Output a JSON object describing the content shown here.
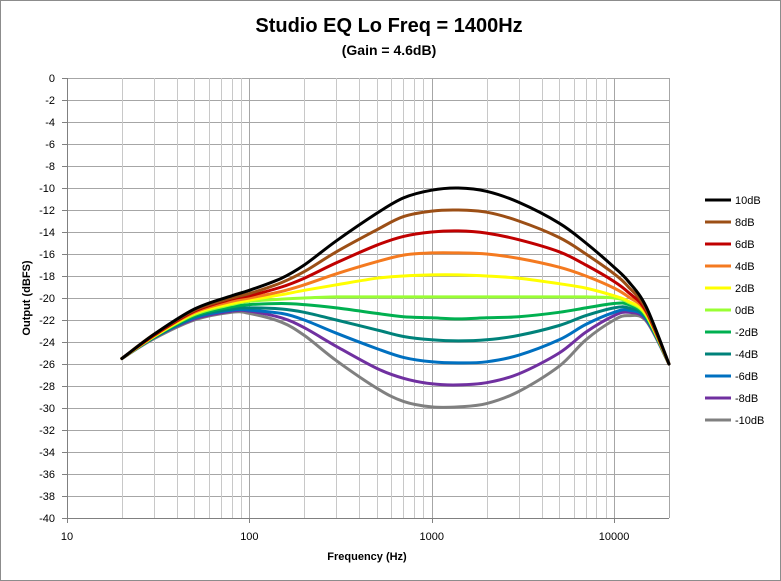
{
  "chart_data": {
    "type": "line",
    "title": "Studio EQ Lo Freq = 1400Hz",
    "subtitle": "(Gain = 4.6dB)",
    "xlabel": "Frequency (Hz)",
    "ylabel": "Output (dBFS)",
    "xscale": "log",
    "xlim": [
      10,
      20000
    ],
    "ylim": [
      -40,
      0
    ],
    "xticks": [
      10,
      100,
      1000,
      10000
    ],
    "yticks": [
      0,
      -2,
      -4,
      -6,
      -8,
      -10,
      -12,
      -14,
      -16,
      -18,
      -20,
      -22,
      -24,
      -26,
      -28,
      -30,
      -32,
      -34,
      -36,
      -38,
      -40
    ],
    "grid": true,
    "legend": "right",
    "x": [
      20,
      30,
      50,
      80,
      100,
      150,
      200,
      300,
      500,
      700,
      1000,
      1400,
      2000,
      3000,
      5000,
      7000,
      10000,
      12000,
      15000,
      20000
    ],
    "series": [
      {
        "name": "10dB",
        "color": "#000000",
        "values": [
          -25.5,
          -23.3,
          -21.0,
          -19.8,
          -19.3,
          -18.2,
          -17.0,
          -14.8,
          -12.3,
          -10.9,
          -10.2,
          -10.0,
          -10.3,
          -11.3,
          -13.2,
          -15.0,
          -17.2,
          -18.5,
          -20.8,
          -26.0
        ]
      },
      {
        "name": "8dB",
        "color": "#9c4f16",
        "values": [
          -25.5,
          -23.3,
          -21.1,
          -20.0,
          -19.6,
          -18.6,
          -17.6,
          -15.8,
          -13.8,
          -12.6,
          -12.1,
          -12.0,
          -12.2,
          -13.0,
          -14.5,
          -16.0,
          -17.8,
          -19.0,
          -21.0,
          -26.0
        ]
      },
      {
        "name": "6dB",
        "color": "#c00000",
        "values": [
          -25.5,
          -23.4,
          -21.2,
          -20.1,
          -19.8,
          -19.0,
          -18.2,
          -16.8,
          -15.2,
          -14.4,
          -14.0,
          -13.9,
          -14.1,
          -14.7,
          -15.8,
          -17.0,
          -18.5,
          -19.5,
          -21.2,
          -26.0
        ]
      },
      {
        "name": "4dB",
        "color": "#f47a20",
        "values": [
          -25.5,
          -23.4,
          -21.3,
          -20.3,
          -20.0,
          -19.4,
          -18.8,
          -17.8,
          -16.7,
          -16.1,
          -15.9,
          -15.9,
          -16.0,
          -16.4,
          -17.2,
          -18.0,
          -19.1,
          -19.9,
          -21.3,
          -26.0
        ]
      },
      {
        "name": "2dB",
        "color": "#ffff00",
        "values": [
          -25.5,
          -23.5,
          -21.4,
          -20.5,
          -20.2,
          -19.7,
          -19.3,
          -18.8,
          -18.2,
          -18.0,
          -17.9,
          -17.9,
          -18.0,
          -18.2,
          -18.7,
          -19.1,
          -19.8,
          -20.3,
          -21.5,
          -26.0
        ]
      },
      {
        "name": "0dB",
        "color": "#99ff33",
        "values": [
          -25.5,
          -23.5,
          -21.5,
          -20.6,
          -20.3,
          -20.1,
          -20.0,
          -19.9,
          -19.9,
          -19.9,
          -19.9,
          -19.9,
          -19.9,
          -19.9,
          -19.9,
          -19.9,
          -20.0,
          -20.4,
          -21.6,
          -26.0
        ]
      },
      {
        "name": "-2dB",
        "color": "#00b050",
        "values": [
          -25.5,
          -23.5,
          -21.6,
          -20.8,
          -20.6,
          -20.5,
          -20.6,
          -20.9,
          -21.4,
          -21.7,
          -21.8,
          -21.9,
          -21.8,
          -21.7,
          -21.3,
          -20.9,
          -20.5,
          -20.6,
          -21.7,
          -26.0
        ]
      },
      {
        "name": "-4dB",
        "color": "#00827a",
        "values": [
          -25.5,
          -23.6,
          -21.7,
          -21.0,
          -20.9,
          -21.0,
          -21.3,
          -22.0,
          -22.9,
          -23.5,
          -23.8,
          -23.9,
          -23.8,
          -23.4,
          -22.5,
          -21.6,
          -20.9,
          -20.9,
          -21.8,
          -26.0
        ]
      },
      {
        "name": "-6dB",
        "color": "#0070c0",
        "values": [
          -25.5,
          -23.6,
          -21.8,
          -21.1,
          -21.1,
          -21.4,
          -22.0,
          -23.2,
          -24.6,
          -25.4,
          -25.8,
          -25.9,
          -25.8,
          -25.2,
          -23.8,
          -22.4,
          -21.3,
          -21.1,
          -21.9,
          -26.0
        ]
      },
      {
        "name": "-8dB",
        "color": "#7030a0",
        "values": [
          -25.5,
          -23.6,
          -21.9,
          -21.2,
          -21.2,
          -21.8,
          -22.7,
          -24.4,
          -26.4,
          -27.3,
          -27.8,
          -27.9,
          -27.7,
          -26.9,
          -25.0,
          -23.1,
          -21.6,
          -21.3,
          -22.0,
          -26.0
        ]
      },
      {
        "name": "-10dB",
        "color": "#808080",
        "values": [
          -25.5,
          -23.7,
          -22.0,
          -21.3,
          -21.4,
          -22.2,
          -23.4,
          -25.7,
          -28.2,
          -29.4,
          -29.9,
          -29.9,
          -29.6,
          -28.5,
          -26.2,
          -23.8,
          -22.0,
          -21.6,
          -22.1,
          -26.0
        ]
      }
    ]
  }
}
